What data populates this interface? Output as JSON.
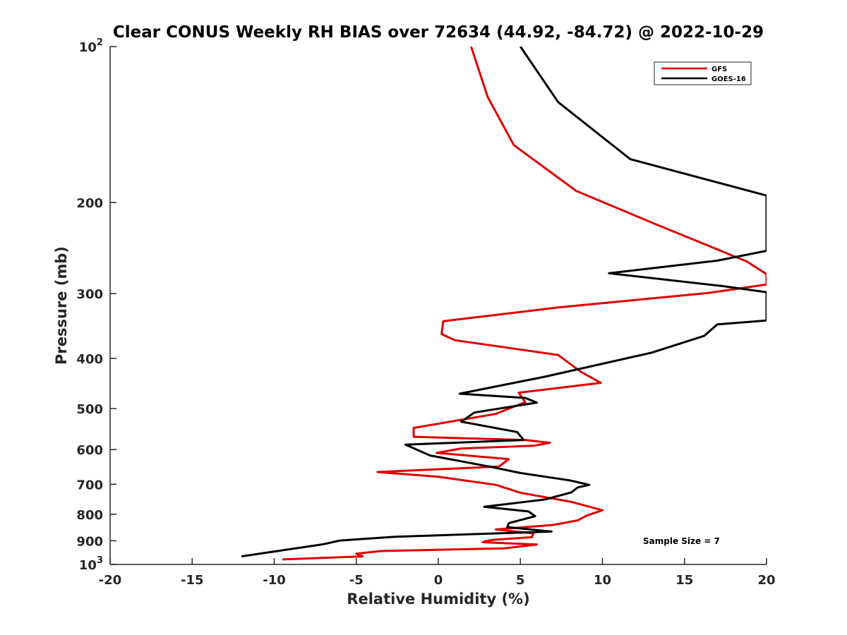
{
  "chart_data": {
    "type": "line",
    "title": "Clear CONUS Weekly RH BIAS over 72634 (44.92, -84.72) @ 2022-10-29",
    "xlabel": "Relative Humidity (%)",
    "ylabel": "Pressure (mb)",
    "xlim": [
      -20,
      20
    ],
    "ylim": [
      100,
      1000
    ],
    "yscale": "log",
    "yreversed": true,
    "x_ticks": [
      -20,
      -15,
      -10,
      -5,
      0,
      5,
      10,
      15,
      20
    ],
    "x_tick_labels": [
      "-20",
      "-15",
      "-10",
      "-5",
      "0",
      "5",
      "10",
      "15",
      "20"
    ],
    "y_ticks": [
      {
        "value": 100,
        "base": "10",
        "exp": "2"
      },
      {
        "value": 200,
        "text": "200"
      },
      {
        "value": 300,
        "text": "300"
      },
      {
        "value": 400,
        "text": "400"
      },
      {
        "value": 500,
        "text": "500"
      },
      {
        "value": 600,
        "text": "600"
      },
      {
        "value": 700,
        "text": "700"
      },
      {
        "value": 800,
        "text": "800"
      },
      {
        "value": 900,
        "text": "900"
      },
      {
        "value": 1000,
        "base": "10",
        "exp": "3"
      }
    ],
    "legend_position": "top-right",
    "annotation": "Sample Size = 7",
    "series": [
      {
        "name": "GFS",
        "color": "#e00000",
        "points": [
          [
            2.0,
            100
          ],
          [
            3.0,
            125
          ],
          [
            4.6,
            155
          ],
          [
            8.4,
            190
          ],
          [
            13.5,
            222
          ],
          [
            18.8,
            260
          ],
          [
            20.0,
            275
          ],
          [
            20.0,
            288
          ],
          [
            16.5,
            299
          ],
          [
            7.3,
            319
          ],
          [
            0.3,
            339
          ],
          [
            0.2,
            359
          ],
          [
            1.0,
            369
          ],
          [
            7.3,
            394
          ],
          [
            8.7,
            425
          ],
          [
            9.9,
            446
          ],
          [
            4.9,
            466
          ],
          [
            5.3,
            486
          ],
          [
            3.5,
            512
          ],
          [
            -1.5,
            545
          ],
          [
            -1.5,
            567
          ],
          [
            5.3,
            575
          ],
          [
            6.8,
            582
          ],
          [
            5.8,
            590
          ],
          [
            1.4,
            597
          ],
          [
            -0.1,
            609
          ],
          [
            4.3,
            626
          ],
          [
            3.7,
            647
          ],
          [
            -3.7,
            663
          ],
          [
            0.0,
            677
          ],
          [
            3.5,
            702
          ],
          [
            5.0,
            727
          ],
          [
            8.1,
            757
          ],
          [
            10.0,
            786
          ],
          [
            9.0,
            806
          ],
          [
            8.5,
            822
          ],
          [
            7.0,
            839
          ],
          [
            3.5,
            856
          ],
          [
            5.8,
            871
          ],
          [
            5.7,
            886
          ],
          [
            3.4,
            896
          ],
          [
            2.9,
            901
          ],
          [
            2.7,
            906
          ],
          [
            6.0,
            915
          ],
          [
            4.0,
            931
          ],
          [
            -3.5,
            942
          ],
          [
            -5.0,
            953
          ],
          [
            -4.6,
            965
          ],
          [
            -9.5,
            978
          ]
        ]
      },
      {
        "name": "GOES-16",
        "color": "#000000",
        "points": [
          [
            5.0,
            100
          ],
          [
            7.3,
            128
          ],
          [
            11.7,
            165
          ],
          [
            20.0,
            194
          ],
          [
            20.0,
            248
          ],
          [
            17.0,
            259
          ],
          [
            10.4,
            274
          ],
          [
            17.3,
            290
          ],
          [
            20.0,
            298
          ],
          [
            20.0,
            338
          ],
          [
            17.0,
            344
          ],
          [
            16.2,
            362
          ],
          [
            13.0,
            390
          ],
          [
            6.5,
            434
          ],
          [
            1.3,
            468
          ],
          [
            5.3,
            477
          ],
          [
            6.0,
            487
          ],
          [
            2.2,
            509
          ],
          [
            1.4,
            530
          ],
          [
            4.8,
            555
          ],
          [
            5.2,
            575
          ],
          [
            -2.0,
            587
          ],
          [
            -0.5,
            616
          ],
          [
            3.2,
            648
          ],
          [
            5.0,
            666
          ],
          [
            8.0,
            688
          ],
          [
            9.2,
            702
          ],
          [
            8.5,
            710
          ],
          [
            8.1,
            726
          ],
          [
            6.5,
            749
          ],
          [
            2.8,
            774
          ],
          [
            5.5,
            790
          ],
          [
            5.9,
            807
          ],
          [
            4.3,
            832
          ],
          [
            4.2,
            847
          ],
          [
            6.9,
            864
          ],
          [
            -2.6,
            884
          ],
          [
            -6.0,
            899
          ],
          [
            -7.0,
            914
          ],
          [
            -12.0,
            965
          ]
        ]
      }
    ]
  }
}
